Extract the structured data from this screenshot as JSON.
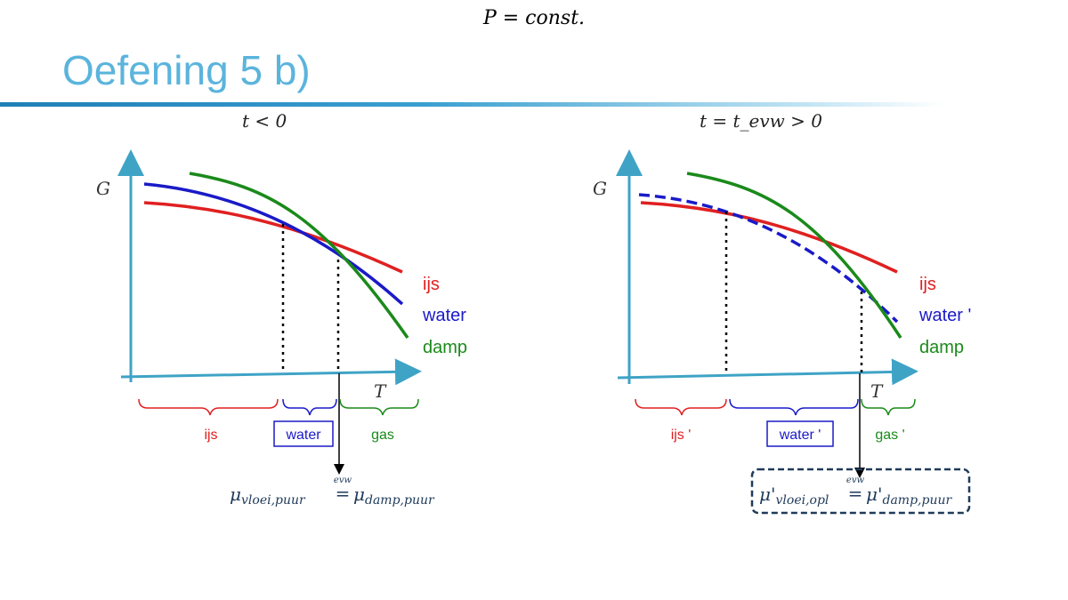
{
  "header": {
    "formula": "P = const.",
    "title": "Oefening 5 b)"
  },
  "left_panel": {
    "condition": "t < 0",
    "axis_y_label": "G",
    "axis_x_label": "T",
    "legend": {
      "ijs": "ijs",
      "water": "water",
      "damp": "damp"
    },
    "regions": {
      "ijs": "ijs",
      "water": "water",
      "gas": "gas"
    },
    "equation": {
      "lhs_symbol": "μ",
      "lhs_sub": "vloei,puur",
      "relation": "=",
      "over_relation": "evw",
      "rhs_symbol": "μ",
      "rhs_sub": "damp,puur"
    }
  },
  "right_panel": {
    "condition": "t = t_evw > 0",
    "axis_y_label": "G",
    "axis_x_label": "T",
    "legend": {
      "ijs": "ijs",
      "water": "water '",
      "damp": "damp"
    },
    "regions": {
      "ijs": "ijs '",
      "water": "water '",
      "gas": "gas '"
    },
    "equation": {
      "lhs_symbol": "μ'",
      "lhs_sub": "vloei,opl",
      "relation": "=",
      "over_relation": "evw",
      "rhs_symbol": "μ'",
      "rhs_sub": "damp,puur"
    }
  },
  "colors": {
    "ijs": "#e02020",
    "water": "#1a1ac8",
    "damp": "#1a8a1a",
    "axis": "#3fa3c6",
    "title": "#5bb4dc",
    "equation_box": "#1f3a5a"
  }
}
